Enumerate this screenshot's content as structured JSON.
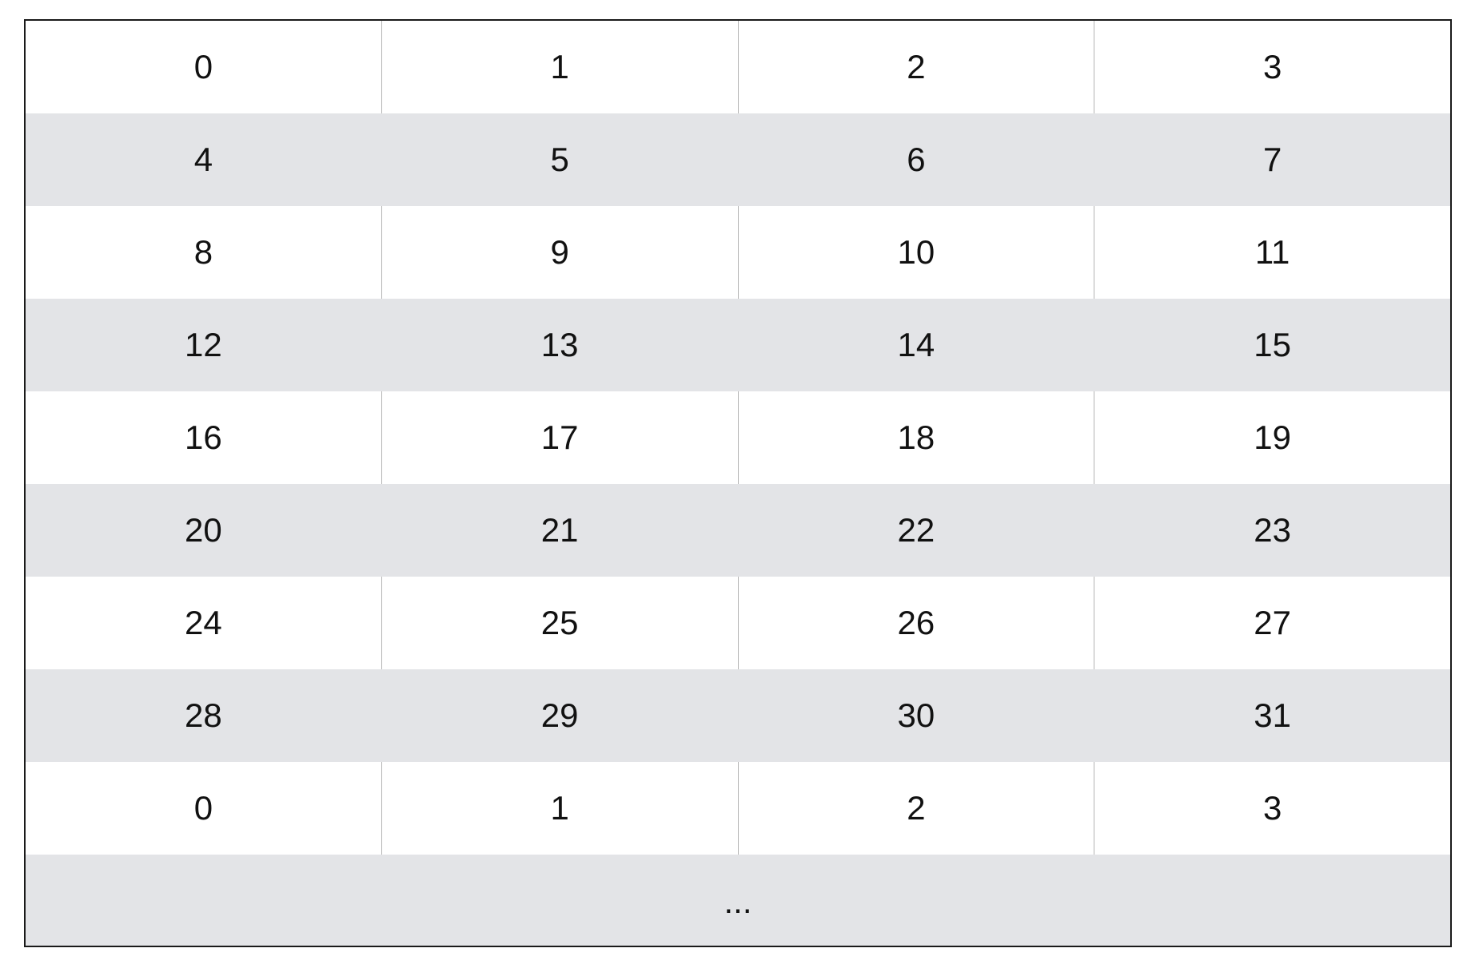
{
  "rows": [
    [
      "0",
      "1",
      "2",
      "3"
    ],
    [
      "4",
      "5",
      "6",
      "7"
    ],
    [
      "8",
      "9",
      "10",
      "11"
    ],
    [
      "12",
      "13",
      "14",
      "15"
    ],
    [
      "16",
      "17",
      "18",
      "19"
    ],
    [
      "20",
      "21",
      "22",
      "23"
    ],
    [
      "24",
      "25",
      "26",
      "27"
    ],
    [
      "28",
      "29",
      "30",
      "31"
    ],
    [
      "0",
      "1",
      "2",
      "3"
    ]
  ],
  "ellipsis": "...",
  "colors": {
    "shaded_row": "#e3e4e7",
    "plain_row": "#ffffff",
    "border": "#1a1a1a",
    "divider": "#b3b3b3"
  }
}
